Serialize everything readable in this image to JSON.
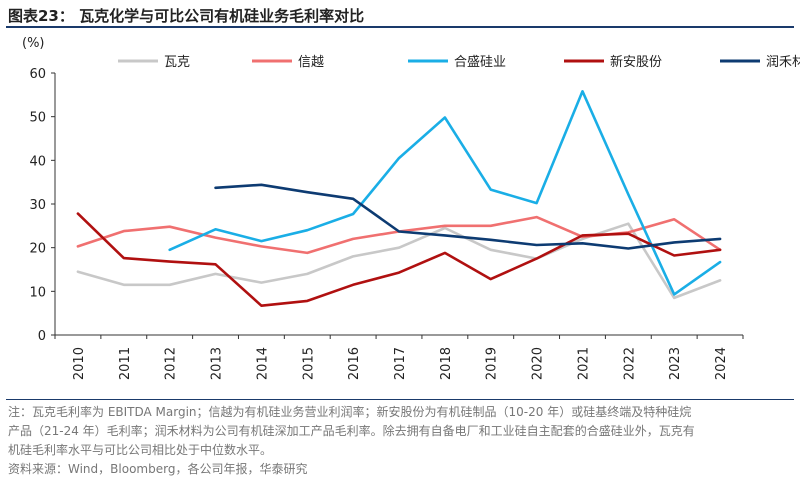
{
  "figure": {
    "title": "图表23：  瓦克化学与可比公司有机硅业务毛利率对比",
    "note_lines": [
      "注：瓦克毛利率为 EBITDA Margin；信越为有机硅业务营业利润率；新安股份为有机硅制品（10-20 年）或硅基终端及特种硅烷",
      "产品（21-24 年）毛利率；润禾材料为公司有机硅深加工产品毛利率。除去拥有自备电厂和工业硅自主配套的合盛硅业外，瓦克有",
      "机硅毛利率水平与可比公司相比处于中位数水平。"
    ],
    "source": "资料来源：Wind，Bloomberg，各公司年报，华泰研究"
  },
  "chart_data": {
    "type": "line",
    "title": "瓦克化学与可比公司有机硅业务毛利率对比",
    "ylabel": "(%)",
    "xlabel": "",
    "ylim": [
      0,
      60
    ],
    "yticks": [
      0,
      10,
      20,
      30,
      40,
      50,
      60
    ],
    "x": [
      "2010",
      "2011",
      "2012",
      "2013",
      "2014",
      "2015",
      "2016",
      "2017",
      "2018",
      "2019",
      "2020",
      "2021",
      "2022",
      "2023",
      "2024"
    ],
    "grid": false,
    "legend_position": "top",
    "series": [
      {
        "name": "瓦克",
        "color": "#c8c8c8",
        "values": [
          14.5,
          11.5,
          11.5,
          14,
          12,
          14,
          18,
          20,
          24.5,
          19.5,
          17.5,
          22,
          25.5,
          8.5,
          12.5
        ]
      },
      {
        "name": "信越",
        "color": "#f07070",
        "values": [
          20.3,
          23.8,
          24.8,
          22.3,
          20.3,
          18.8,
          22,
          23.7,
          25,
          25,
          27,
          22.5,
          23.5,
          26.5,
          19.5
        ]
      },
      {
        "name": "合盛硅业",
        "color": "#1aaee6",
        "values": [
          null,
          null,
          19.5,
          24.2,
          21.5,
          24,
          27.7,
          40.5,
          49.8,
          33.3,
          30.2,
          55.8,
          32.2,
          9.3,
          16.7
        ]
      },
      {
        "name": "新安股份",
        "color": "#b01010",
        "values": [
          27.8,
          17.6,
          16.8,
          16.2,
          6.7,
          7.8,
          11.5,
          14.3,
          18.8,
          12.8,
          17.5,
          22.8,
          23.2,
          18.2,
          19.5
        ]
      },
      {
        "name": "润禾材料",
        "color": "#0d3b72",
        "values": [
          null,
          null,
          null,
          33.7,
          34.4,
          32.7,
          31.2,
          23.7,
          22.8,
          21.8,
          20.6,
          21,
          19.8,
          21.2,
          22
        ]
      }
    ]
  }
}
